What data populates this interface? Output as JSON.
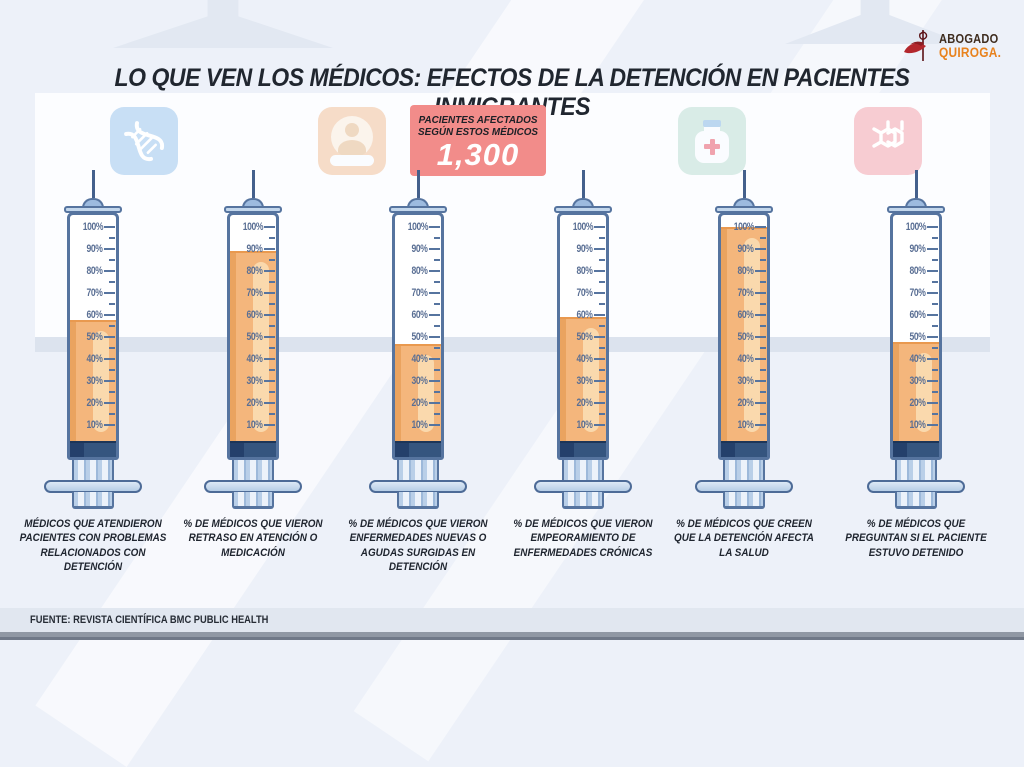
{
  "title": "LO QUE VEN LOS MÉDICOS: EFECTOS DE LA DETENCIÓN EN PACIENTES INMIGRANTES",
  "logo": {
    "line1": "ABOGADO",
    "line2": "QUIROGA."
  },
  "badge": {
    "line1": "PACIENTES AFECTADOS",
    "line2": "SEGÚN ESTOS MÉDICOS",
    "value": "1,300"
  },
  "icon_tiles": [
    {
      "name": "dna-icon",
      "bg": "#c8dff5"
    },
    {
      "name": "patient-card-icon",
      "bg": "#f6dcc8"
    },
    {
      "name": "medicine-bottle-icon",
      "bg": "#d9ece7"
    },
    {
      "name": "molecule-icon",
      "bg": "#f7ccd2"
    }
  ],
  "chart_data": {
    "type": "bar",
    "title": "LO QUE VEN LOS MÉDICOS: EFECTOS DE LA DETENCIÓN EN PACIENTES INMIGRANTES",
    "unit": "%",
    "ylim": [
      0,
      100
    ],
    "yticks": [
      "100%",
      "90%",
      "80%",
      "70%",
      "60%",
      "50%",
      "40%",
      "30%",
      "20%",
      "10%"
    ],
    "categories": [
      "MÉDICOS QUE ATENDIERON PACIENTES CON PROBLEMAS RELACIONADOS CON DETENCIÓN",
      "% DE MÉDICOS QUE VIERON RETRASO EN ATENCIÓN O MEDICACIÓN",
      "% DE MÉDICOS QUE VIERON ENFERMEDADES NUEVAS O AGUDAS SURGIDAS EN DETENCIÓN",
      "% DE MÉDICOS QUE VIERON EMPEORAMIENTO DE ENFERMEDADES CRÓNICAS",
      "% DE MÉDICOS QUE CREEN QUE LA DETENCIÓN AFECTA LA SALUD",
      "% DE MÉDICOS QUE PREGUNTAN SI EL PACIENTE ESTUVO DETENIDO"
    ],
    "values": [
      57,
      88,
      46,
      58,
      99,
      47
    ],
    "annotation": {
      "label": "PACIENTES AFECTADOS SEGÚN ESTOS MÉDICOS",
      "value": "1,300"
    },
    "legend": "none",
    "grid": "off"
  },
  "footer": {
    "source": "FUENTE: REVISTA CIENTÍFICA BMC PUBLIC HEALTH"
  },
  "colors": {
    "background": "#edf1f9",
    "fill_orange": "#f4b67c",
    "fill_edge": "#e9994f",
    "badge_red": "#f28c8a",
    "barrel_border": "#56749f",
    "tick_text": "#5a6f94",
    "logo_orange": "#e8821e",
    "logo_red": "#b3272d"
  }
}
